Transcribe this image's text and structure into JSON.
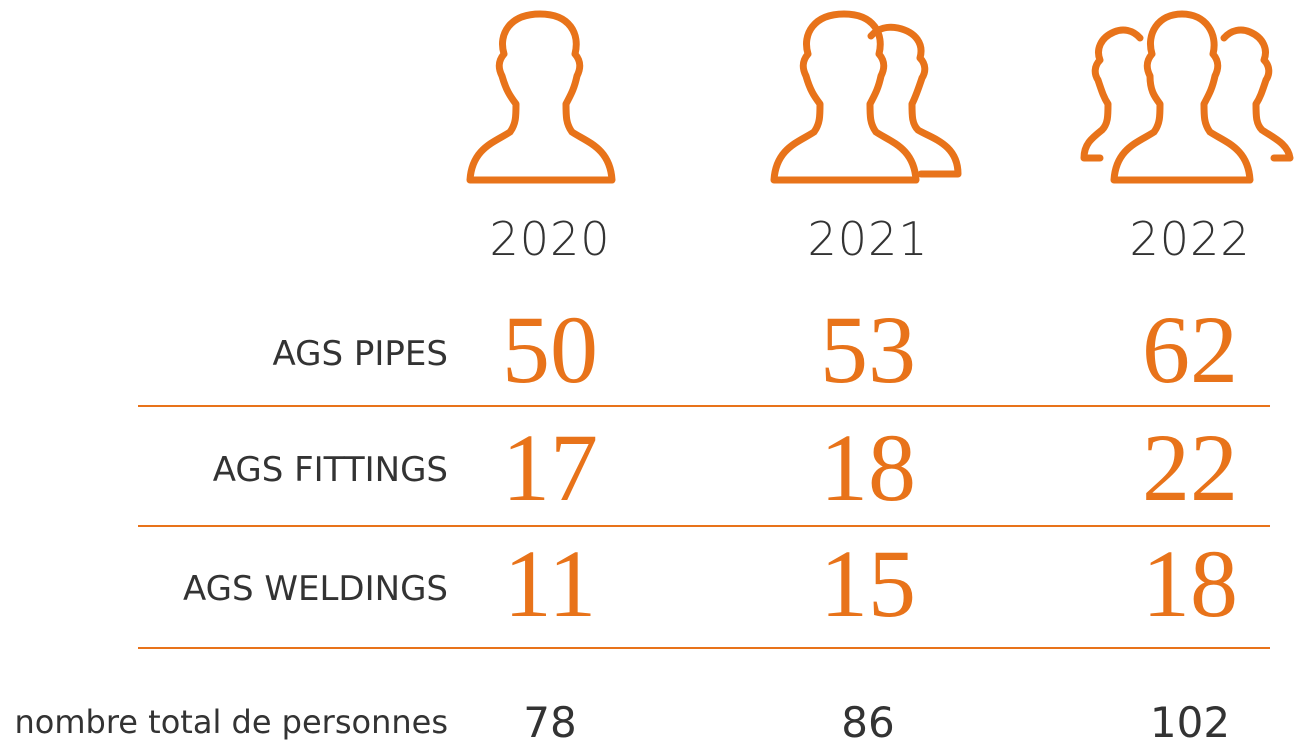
{
  "accent_color": "#E8731A",
  "icons": [
    "single-person-icon",
    "two-people-icon",
    "three-people-icon"
  ],
  "years": [
    "2020",
    "2021",
    "2022"
  ],
  "rows": [
    {
      "label": "AGS PIPES",
      "values": [
        "50",
        "53",
        "62"
      ]
    },
    {
      "label": "AGS FITTINGS",
      "values": [
        "17",
        "18",
        "22"
      ]
    },
    {
      "label": "AGS WELDINGS",
      "values": [
        "11",
        "15",
        "18"
      ]
    }
  ],
  "total": {
    "label": "nombre total de personnes",
    "values": [
      "78",
      "86",
      "102"
    ]
  }
}
